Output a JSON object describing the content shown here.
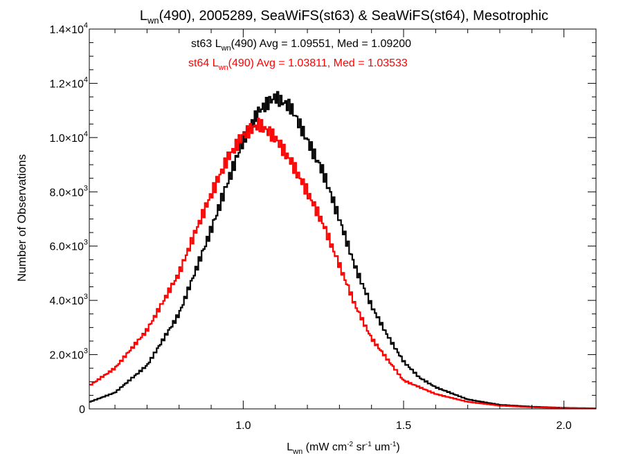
{
  "chart_data": {
    "type": "line",
    "title": {
      "prefix": "L",
      "sub": "wn",
      "rest": "(490), 2005289, SeaWiFS(st63) & SeaWiFS(st64), Mesotrophic"
    },
    "xlabel": {
      "prefix": "L",
      "sub": "wn",
      "text1": " (mW cm",
      "sup1": "-2",
      "text2": " sr",
      "sup2": "-1",
      "text3": " um",
      "sup3": "-1",
      "text4": ")"
    },
    "ylabel": "Number of Observations",
    "xlim": [
      0.52,
      2.1
    ],
    "ylim": [
      0,
      14000
    ],
    "x_ticks": [
      {
        "value": 1.0,
        "label": "1.0"
      },
      {
        "value": 1.5,
        "label": "1.5"
      },
      {
        "value": 2.0,
        "label": "2.0"
      }
    ],
    "y_ticks": [
      {
        "value": 0,
        "mantissa": "0",
        "exponent": ""
      },
      {
        "value": 2000,
        "mantissa": "2.0×10",
        "exponent": "3"
      },
      {
        "value": 4000,
        "mantissa": "4.0×10",
        "exponent": "3"
      },
      {
        "value": 6000,
        "mantissa": "6.0×10",
        "exponent": "3"
      },
      {
        "value": 8000,
        "mantissa": "8.0×10",
        "exponent": "3"
      },
      {
        "value": 10000,
        "mantissa": "1.0×10",
        "exponent": "4"
      },
      {
        "value": 12000,
        "mantissa": "1.2×10",
        "exponent": "4"
      },
      {
        "value": 14000,
        "mantissa": "1.4×10",
        "exponent": "4"
      }
    ],
    "series": [
      {
        "name": "st63",
        "color": "#000000",
        "legend": {
          "prefix": "st63 L",
          "sub": "wn",
          "rest": "(490) Avg = 1.09551, Med = 1.09200"
        },
        "x": [
          0.52,
          0.6,
          0.7,
          0.8,
          0.9,
          0.95,
          1.0,
          1.05,
          1.1,
          1.15,
          1.2,
          1.25,
          1.3,
          1.35,
          1.4,
          1.45,
          1.5,
          1.55,
          1.6,
          1.7,
          1.8,
          1.9,
          2.0,
          2.1
        ],
        "values": [
          250,
          600,
          1600,
          3500,
          6600,
          8300,
          9900,
          11000,
          11500,
          11100,
          9900,
          8700,
          7000,
          5200,
          3800,
          2700,
          1750,
          1150,
          800,
          350,
          150,
          80,
          40,
          20
        ]
      },
      {
        "name": "st64",
        "color": "#ff0000",
        "legend": {
          "prefix": "st64 L",
          "sub": "wn",
          "rest": "(490) Avg = 1.03811, Med = 1.03533"
        },
        "x": [
          0.52,
          0.6,
          0.7,
          0.8,
          0.85,
          0.9,
          0.95,
          1.0,
          1.05,
          1.1,
          1.15,
          1.2,
          1.25,
          1.3,
          1.35,
          1.4,
          1.5,
          1.6,
          1.7,
          1.8,
          1.9,
          2.0,
          2.1
        ],
        "values": [
          850,
          1500,
          2900,
          5000,
          6500,
          7900,
          9200,
          10100,
          10500,
          10000,
          9100,
          8000,
          6800,
          5300,
          3800,
          2600,
          1050,
          550,
          260,
          120,
          60,
          30,
          15
        ]
      }
    ]
  }
}
